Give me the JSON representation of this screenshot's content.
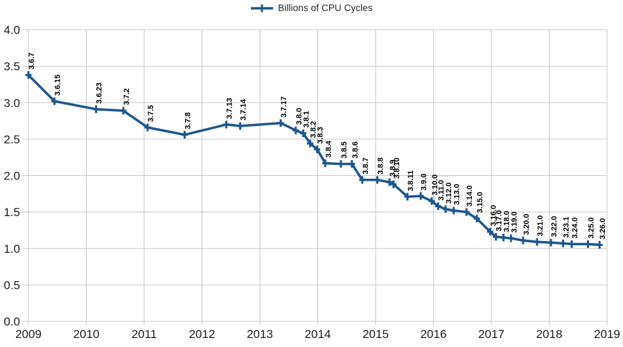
{
  "legend": {
    "label": "Billions of CPU Cycles"
  },
  "chart_data": {
    "type": "line",
    "title": "",
    "xlabel": "",
    "ylabel": "",
    "legend_entries": [
      "Billions of CPU Cycles"
    ],
    "legend_position": "top-center",
    "grid": true,
    "xlim": [
      2009,
      2019
    ],
    "ylim": [
      0.0,
      4.0
    ],
    "xticks": [
      "2009",
      "2010",
      "2011",
      "2012",
      "2013",
      "2014",
      "2015",
      "2016",
      "2017",
      "2018",
      "2019"
    ],
    "yticks": [
      "4.0",
      "3.5",
      "3.0",
      "2.5",
      "2.0",
      "1.5",
      "1.0",
      "0.5",
      "0.0"
    ],
    "colors": {
      "line": "#1d578c",
      "grid": "#c6c6c6",
      "axis_text": "#1a1a1a",
      "point_label_text": "#000000"
    },
    "series": [
      {
        "name": "Billions of CPU Cycles",
        "marker": "plus",
        "points": [
          {
            "label": "3.6.7",
            "x": 2009.0,
            "y": 3.38
          },
          {
            "label": "3.6.15",
            "x": 2009.45,
            "y": 3.02
          },
          {
            "label": "3.6.23",
            "x": 2010.17,
            "y": 2.91
          },
          {
            "label": "3.7.2",
            "x": 2010.64,
            "y": 2.89
          },
          {
            "label": "3.7.5",
            "x": 2011.06,
            "y": 2.66
          },
          {
            "label": "3.7.8",
            "x": 2011.7,
            "y": 2.56
          },
          {
            "label": "3.7.13",
            "x": 2012.42,
            "y": 2.7
          },
          {
            "label": "3.7.14",
            "x": 2012.66,
            "y": 2.68
          },
          {
            "label": "3.7.17",
            "x": 2013.36,
            "y": 2.72
          },
          {
            "label": "3.8.0",
            "x": 2013.62,
            "y": 2.62
          },
          {
            "label": "3.8.1",
            "x": 2013.75,
            "y": 2.58
          },
          {
            "label": "3.8.2",
            "x": 2013.87,
            "y": 2.44
          },
          {
            "label": "3.8.3",
            "x": 2013.99,
            "y": 2.36
          },
          {
            "label": "3.8.4",
            "x": 2014.13,
            "y": 2.17
          },
          {
            "label": "3.8.5",
            "x": 2014.4,
            "y": 2.16
          },
          {
            "label": "3.8.6",
            "x": 2014.59,
            "y": 2.16
          },
          {
            "label": "3.8.7",
            "x": 2014.77,
            "y": 1.94
          },
          {
            "label": "3.8.8",
            "x": 2015.03,
            "y": 1.94
          },
          {
            "label": "3.8.9",
            "x": 2015.24,
            "y": 1.91
          },
          {
            "label": "3.8.10",
            "x": 2015.31,
            "y": 1.88
          },
          {
            "label": "3.8.11",
            "x": 2015.55,
            "y": 1.71
          },
          {
            "label": "3.9.0",
            "x": 2015.78,
            "y": 1.72
          },
          {
            "label": "3.10.0",
            "x": 2015.97,
            "y": 1.65
          },
          {
            "label": "3.11.0",
            "x": 2016.08,
            "y": 1.58
          },
          {
            "label": "3.12.0",
            "x": 2016.21,
            "y": 1.54
          },
          {
            "label": "3.13.0",
            "x": 2016.35,
            "y": 1.52
          },
          {
            "label": "3.14.0",
            "x": 2016.57,
            "y": 1.5
          },
          {
            "label": "3.15.0",
            "x": 2016.75,
            "y": 1.41
          },
          {
            "label": "3.16.0",
            "x": 2016.98,
            "y": 1.23
          },
          {
            "label": "3.17.0",
            "x": 2017.08,
            "y": 1.16
          },
          {
            "label": "3.18.0",
            "x": 2017.21,
            "y": 1.15
          },
          {
            "label": "3.19.0",
            "x": 2017.34,
            "y": 1.14
          },
          {
            "label": "3.20.0",
            "x": 2017.55,
            "y": 1.11
          },
          {
            "label": "3.21.0",
            "x": 2017.79,
            "y": 1.09
          },
          {
            "label": "3.22.0",
            "x": 2018.03,
            "y": 1.08
          },
          {
            "label": "3.23.1",
            "x": 2018.24,
            "y": 1.07
          },
          {
            "label": "3.24.0",
            "x": 2018.39,
            "y": 1.06
          },
          {
            "label": "3.25.0",
            "x": 2018.67,
            "y": 1.06
          },
          {
            "label": "3.26.0",
            "x": 2018.87,
            "y": 1.05
          }
        ]
      }
    ]
  }
}
